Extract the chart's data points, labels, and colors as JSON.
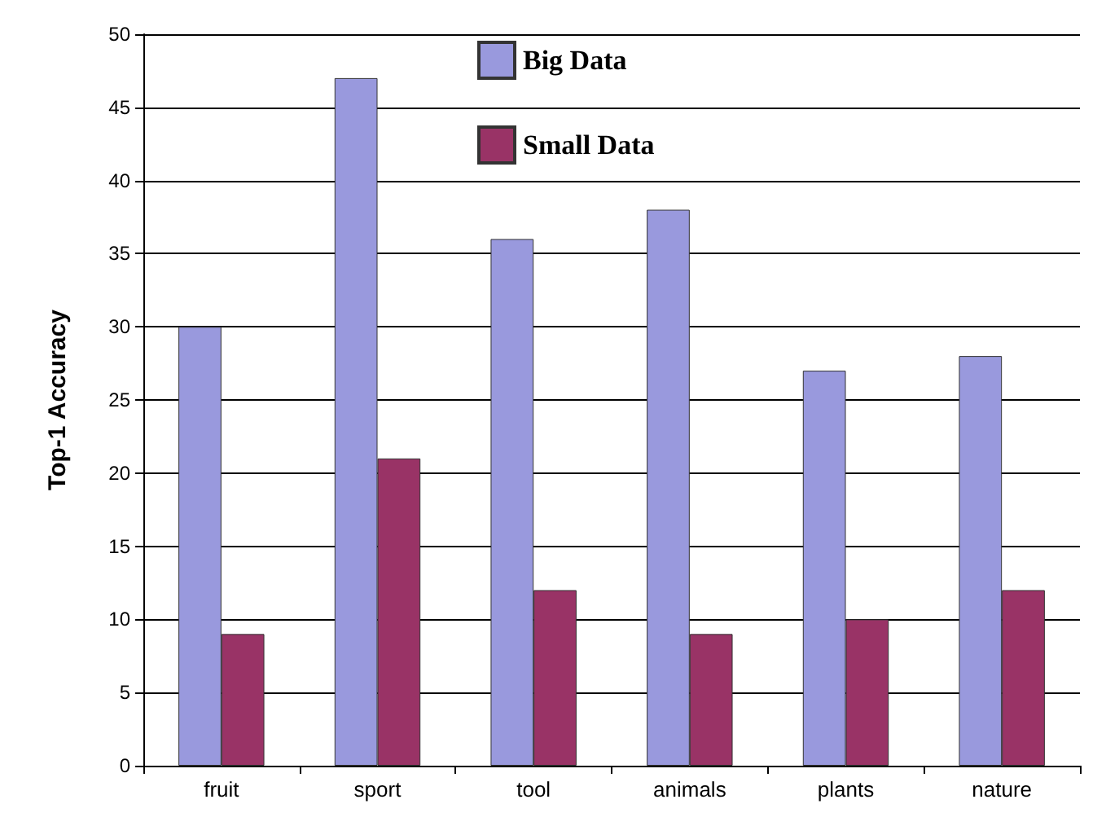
{
  "chart_data": {
    "type": "bar",
    "ylabel": "Top-1 Accuracy",
    "categories": [
      "fruit",
      "sport",
      "tool",
      "animals",
      "plants",
      "nature"
    ],
    "series": [
      {
        "name": "Big Data",
        "color": "#9999dd",
        "values": [
          30,
          47,
          36,
          38,
          27,
          28
        ]
      },
      {
        "name": "Small Data",
        "color": "#993366",
        "values": [
          9,
          21,
          12,
          9,
          10,
          12
        ]
      }
    ],
    "ylim": [
      0,
      50
    ],
    "yticks": [
      0,
      5,
      10,
      15,
      20,
      25,
      30,
      35,
      40,
      45,
      50
    ],
    "grid": "y",
    "legend": "top"
  }
}
